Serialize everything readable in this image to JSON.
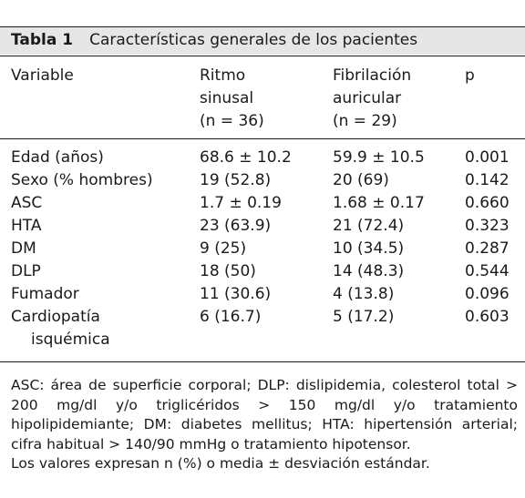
{
  "table": {
    "number": "Tabla 1",
    "title": "Características generales de los pacientes",
    "headers": {
      "variable": "Variable",
      "ritmo": [
        "Ritmo",
        "sinusal",
        "(n = 36)"
      ],
      "fibrilacion": [
        "Fibrilación",
        "auricular",
        "(n = 29)"
      ],
      "p": "p"
    },
    "rows": [
      {
        "variable": "Edad (años)",
        "ritmo": "68.6 ± 10.2",
        "fibrilacion": "59.9 ± 10.5",
        "p": "0.001"
      },
      {
        "variable": "Sexo (% hombres)",
        "ritmo": "19 (52.8)",
        "fibrilacion": "20 (69)",
        "p": "0.142"
      },
      {
        "variable": "ASC",
        "ritmo": "1.7 ± 0.19",
        "fibrilacion": "1.68 ± 0.17",
        "p": "0.660"
      },
      {
        "variable": "HTA",
        "ritmo": "23 (63.9)",
        "fibrilacion": "21 (72.4)",
        "p": "0.323"
      },
      {
        "variable": "DM",
        "ritmo": "9 (25)",
        "fibrilacion": "10 (34.5)",
        "p": "0.287"
      },
      {
        "variable": "DLP",
        "ritmo": "18 (50)",
        "fibrilacion": "14 (48.3)",
        "p": "0.544"
      },
      {
        "variable": "Fumador",
        "ritmo": "11 (30.6)",
        "fibrilacion": "4 (13.8)",
        "p": "0.096"
      },
      {
        "variable": "Cardiopatía",
        "variable_cont": "isquémica",
        "ritmo": "6 (16.7)",
        "fibrilacion": "5 (17.2)",
        "p": "0.603"
      }
    ],
    "footnote": {
      "abbreviations": "ASC: área de superficie corporal; DLP: dislipidemia, colesterol total > 200 mg/dl y/o triglicéridos > 150 mg/dl y/o tratamiento hipolipidemiante; DM: diabetes mellitus; HTA: hipertensión arterial; cifra habitual > 140/90 mmHg o tratamiento hipotensor.",
      "values_note": "Los valores expresan n (%) o media ± desviación estándar."
    }
  }
}
